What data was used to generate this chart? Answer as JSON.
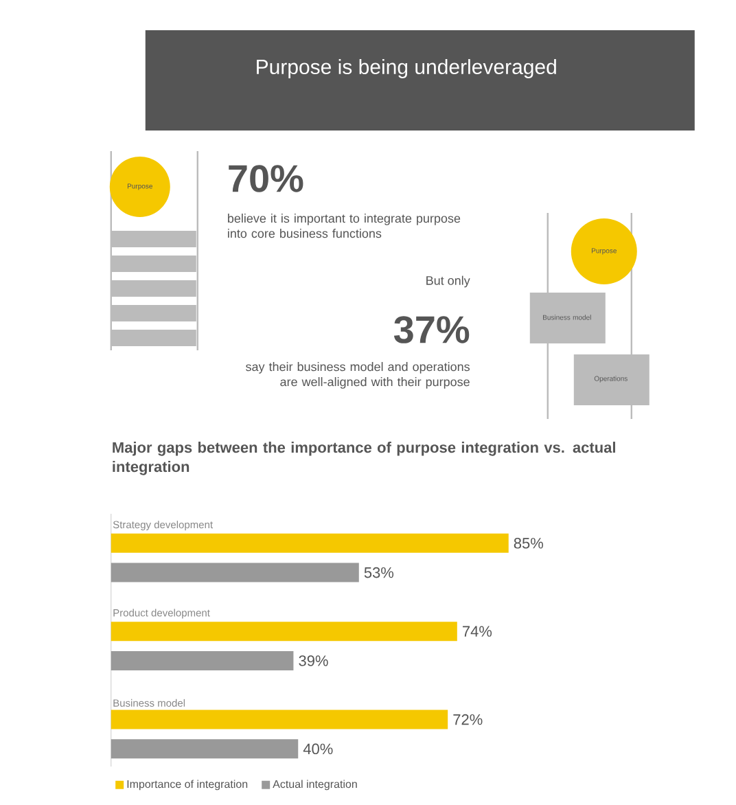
{
  "chart_data": {
    "type": "bar",
    "orientation": "horizontal",
    "title": "Purpose is being underleveraged",
    "subtitle": "Major gaps between the importance of purpose integration vs. actual integration",
    "annotations": [
      "70%",
      "believe it is important to integrate purpose into core business functions",
      "But only",
      "37%",
      "say their business model and operations are well-aligned with their purpose",
      "Purpose",
      "Purpose",
      "Business model",
      "Operations"
    ],
    "categories": [
      "Strategy development",
      "Product development",
      "Business model"
    ],
    "series": [
      {
        "name": "Importance of integration",
        "color": "#f5c800",
        "values": [
          85,
          74,
          72
        ],
        "value_labels": [
          "85%",
          "74%",
          "72%"
        ]
      },
      {
        "name": "Actual integration",
        "color": "#999999",
        "values": [
          53,
          39,
          40
        ],
        "value_labels": [
          "53%",
          "39%",
          "40%"
        ]
      }
    ],
    "legend": "bottom left"
  }
}
